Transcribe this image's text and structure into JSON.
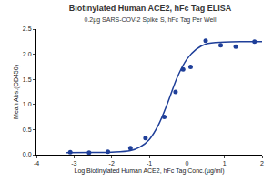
{
  "chart_data": {
    "type": "scatter",
    "title": "Biotinylated Human ACE2, hFc Tag ELISA",
    "subtitle": "0.2µg SARS-COV-2 Spike S, hFc Tag Per Well",
    "x_label": "Log Biotinylated Human ACE2, hFc Tag Conc.(µg/ml)",
    "y_label": "Mean Abs.(OD450)",
    "xlim": [
      -4,
      2
    ],
    "xticks": [
      -4,
      -3,
      -2,
      -1,
      0,
      1,
      2
    ],
    "ylim": [
      0,
      2.5
    ],
    "yticks": [
      {
        "value": 0,
        "label": "0.0"
      },
      {
        "value": 0.5,
        "label": "0.5"
      },
      {
        "value": 1,
        "label": "1.0"
      },
      {
        "value": 1.5,
        "label": "1.5"
      },
      {
        "value": 2,
        "label": "2.0"
      },
      {
        "value": 2.5,
        "label": "2.5"
      }
    ],
    "grid": false,
    "series": [
      {
        "type": "scatter",
        "marker": "circle",
        "color": "#1f3f99",
        "x": [
          -3.1,
          -2.6,
          -2.1,
          -1.5,
          -1.1,
          -0.6,
          -0.3,
          -0.1,
          0.1,
          0.5,
          0.9,
          1.3,
          1.8
        ],
        "values": [
          0.05,
          0.04,
          0.06,
          0.13,
          0.33,
          0.75,
          1.25,
          1.7,
          1.75,
          2.27,
          2.18,
          2.15,
          2.25
        ]
      },
      {
        "type": "line",
        "line_style": "solid",
        "color": "#1f3f99",
        "x": [
          -3.2,
          -2.5,
          -2,
          -1.5,
          -1.25,
          -1,
          -0.75,
          -0.5,
          -0.25,
          0,
          0.25,
          0.5,
          1,
          1.5,
          2
        ],
        "values": [
          0.04,
          0.045,
          0.05,
          0.08,
          0.15,
          0.3,
          0.6,
          1.05,
          1.55,
          1.9,
          2.1,
          2.2,
          2.24,
          2.25,
          2.25
        ]
      }
    ]
  }
}
